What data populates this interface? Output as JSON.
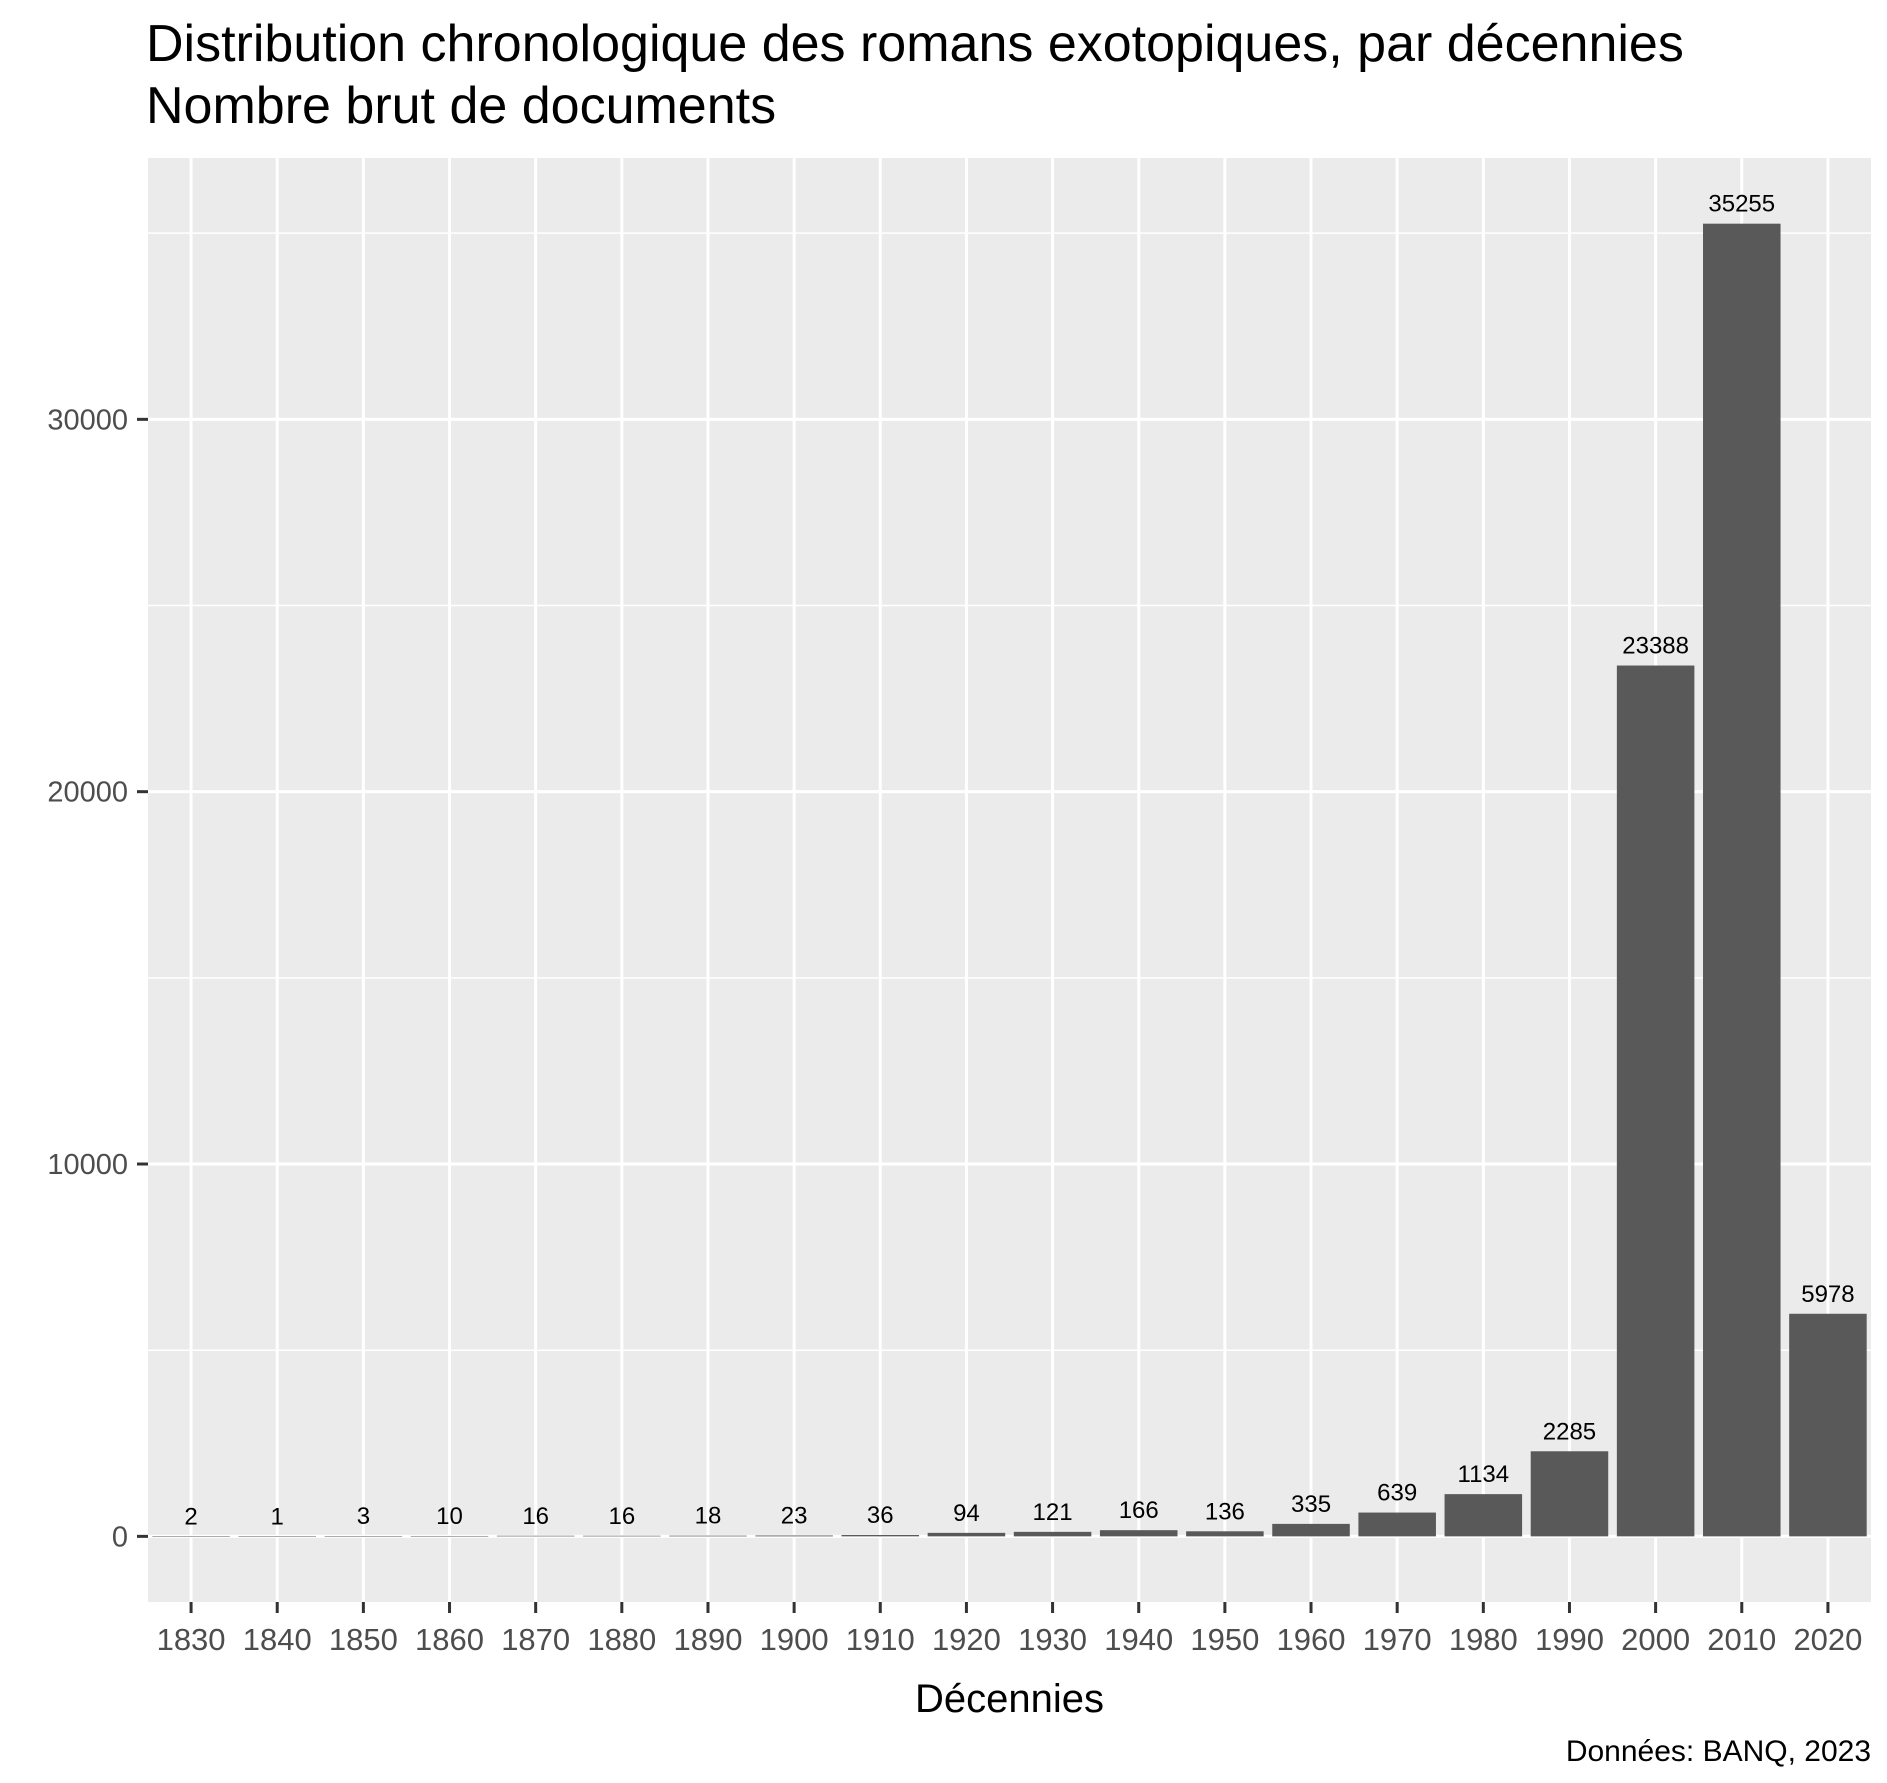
{
  "chart_data": {
    "type": "bar",
    "title": "Distribution chronologique des romans exotopiques, par décennies",
    "subtitle": "Nombre brut de documents",
    "xlabel": "Décennies",
    "ylabel": "",
    "caption": "Données: BANQ, 2023",
    "categories": [
      "1830",
      "1840",
      "1850",
      "1860",
      "1870",
      "1880",
      "1890",
      "1900",
      "1910",
      "1920",
      "1930",
      "1940",
      "1950",
      "1960",
      "1970",
      "1980",
      "1990",
      "2000",
      "2010",
      "2020"
    ],
    "values": [
      2,
      1,
      3,
      10,
      16,
      16,
      18,
      23,
      36,
      94,
      121,
      166,
      136,
      335,
      639,
      1134,
      2285,
      23388,
      35255,
      5978
    ],
    "data_labels": [
      "2",
      "1",
      "3",
      "10",
      "16",
      "16",
      "18",
      "23",
      "36",
      "94",
      "121",
      "166",
      "136",
      "335",
      "639",
      "1134",
      "2285",
      "23388",
      "35255",
      "5978"
    ],
    "y_ticks": [
      0,
      10000,
      20000,
      30000
    ],
    "y_tick_labels": [
      "0",
      "10000",
      "20000",
      "30000"
    ],
    "ylim": [
      -1763,
      37019
    ],
    "grid": true,
    "legend": "none",
    "colors": {
      "bar": "#595959",
      "panel_background": "#EBEBEB",
      "grid": "#FFFFFF",
      "axis_text": "#4D4D4D",
      "axis_tick": "#333333",
      "text": "#000000"
    }
  }
}
